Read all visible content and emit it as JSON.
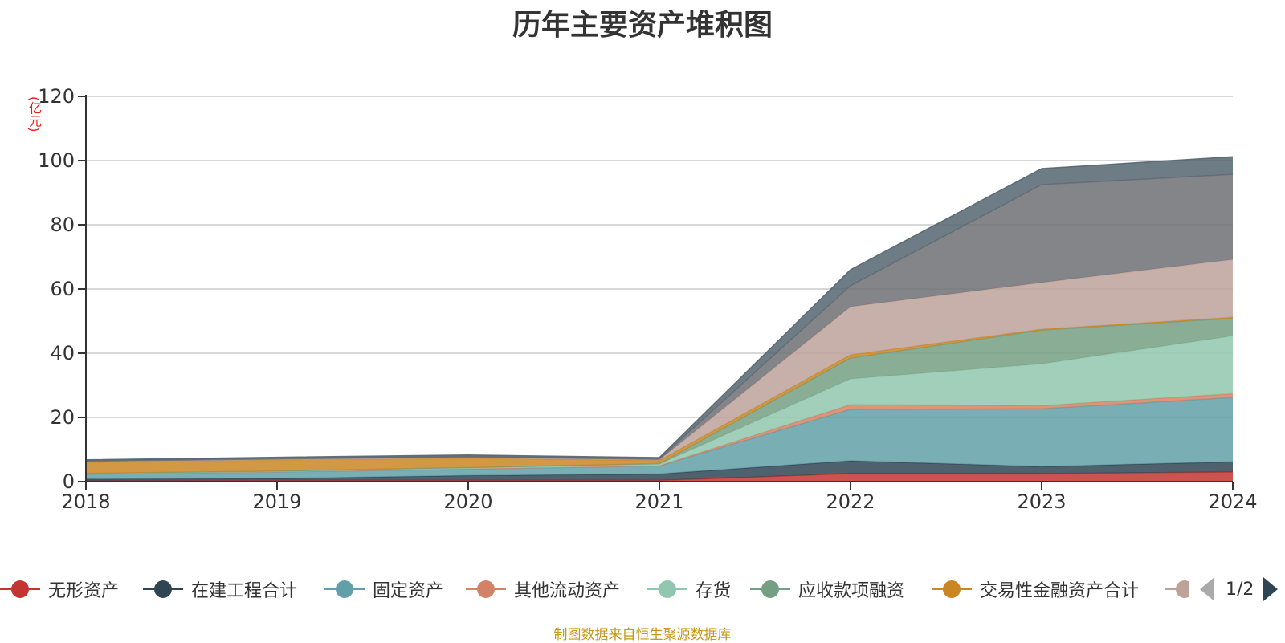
{
  "chart_data": {
    "type": "area",
    "title": "历年主要资产堆积图",
    "ylabel": "亿元",
    "ylim": [
      0,
      120
    ],
    "yticks": [
      0,
      20,
      40,
      60,
      80,
      100,
      120
    ],
    "categories": [
      "2018",
      "2019",
      "2020",
      "2021",
      "2022",
      "2023",
      "2024"
    ],
    "stacked": true,
    "grid": true,
    "series": [
      {
        "name": "无形资产",
        "color": "#c23531",
        "values": [
          0.3,
          0.4,
          0.4,
          0.4,
          2.5,
          2.5,
          3.0
        ]
      },
      {
        "name": "在建工程合计",
        "color": "#2f4554",
        "values": [
          0.5,
          0.6,
          1.5,
          2.0,
          4.0,
          2.2,
          3.2
        ]
      },
      {
        "name": "固定资产",
        "color": "#61a0a8",
        "values": [
          1.5,
          2.0,
          2.0,
          2.5,
          16.0,
          18.0,
          20.0
        ]
      },
      {
        "name": "其他流动资产",
        "color": "#d48265",
        "values": [
          0.1,
          0.1,
          0.1,
          0.1,
          1.5,
          1.0,
          1.2
        ]
      },
      {
        "name": "存货",
        "color": "#91c7ae",
        "values": [
          0.1,
          0.1,
          0.3,
          0.5,
          8.0,
          13.0,
          18.0
        ]
      },
      {
        "name": "应收款项融资",
        "color": "#749f83",
        "values": [
          0.1,
          0.1,
          0.1,
          0.1,
          6.5,
          10.5,
          5.5
        ]
      },
      {
        "name": "交易性金融资产合计",
        "color": "#ca8622",
        "values": [
          3.5,
          3.5,
          3.0,
          1.0,
          1.0,
          0.3,
          0.3
        ]
      },
      {
        "name": "",
        "color": "#bda29a",
        "values": [
          0.1,
          0.1,
          0.1,
          0.2,
          15.0,
          14.5,
          18.0
        ]
      },
      {
        "name": "",
        "color": "#6e7074",
        "values": [
          0.3,
          0.3,
          0.3,
          0.3,
          6.5,
          30.5,
          26.5
        ]
      },
      {
        "name": "",
        "color": "#546570",
        "values": [
          0.3,
          0.4,
          0.5,
          0.4,
          5.0,
          5.0,
          5.5
        ]
      }
    ]
  },
  "legend": {
    "items": [
      "无形资产",
      "在建工程合计",
      "固定资产",
      "其他流动资产",
      "存货",
      "应收款项融资",
      "交易性金融资产合计"
    ],
    "page": "1/2"
  },
  "source": "制图数据来自恒生聚源数据库",
  "unit_label": "(亿元)"
}
